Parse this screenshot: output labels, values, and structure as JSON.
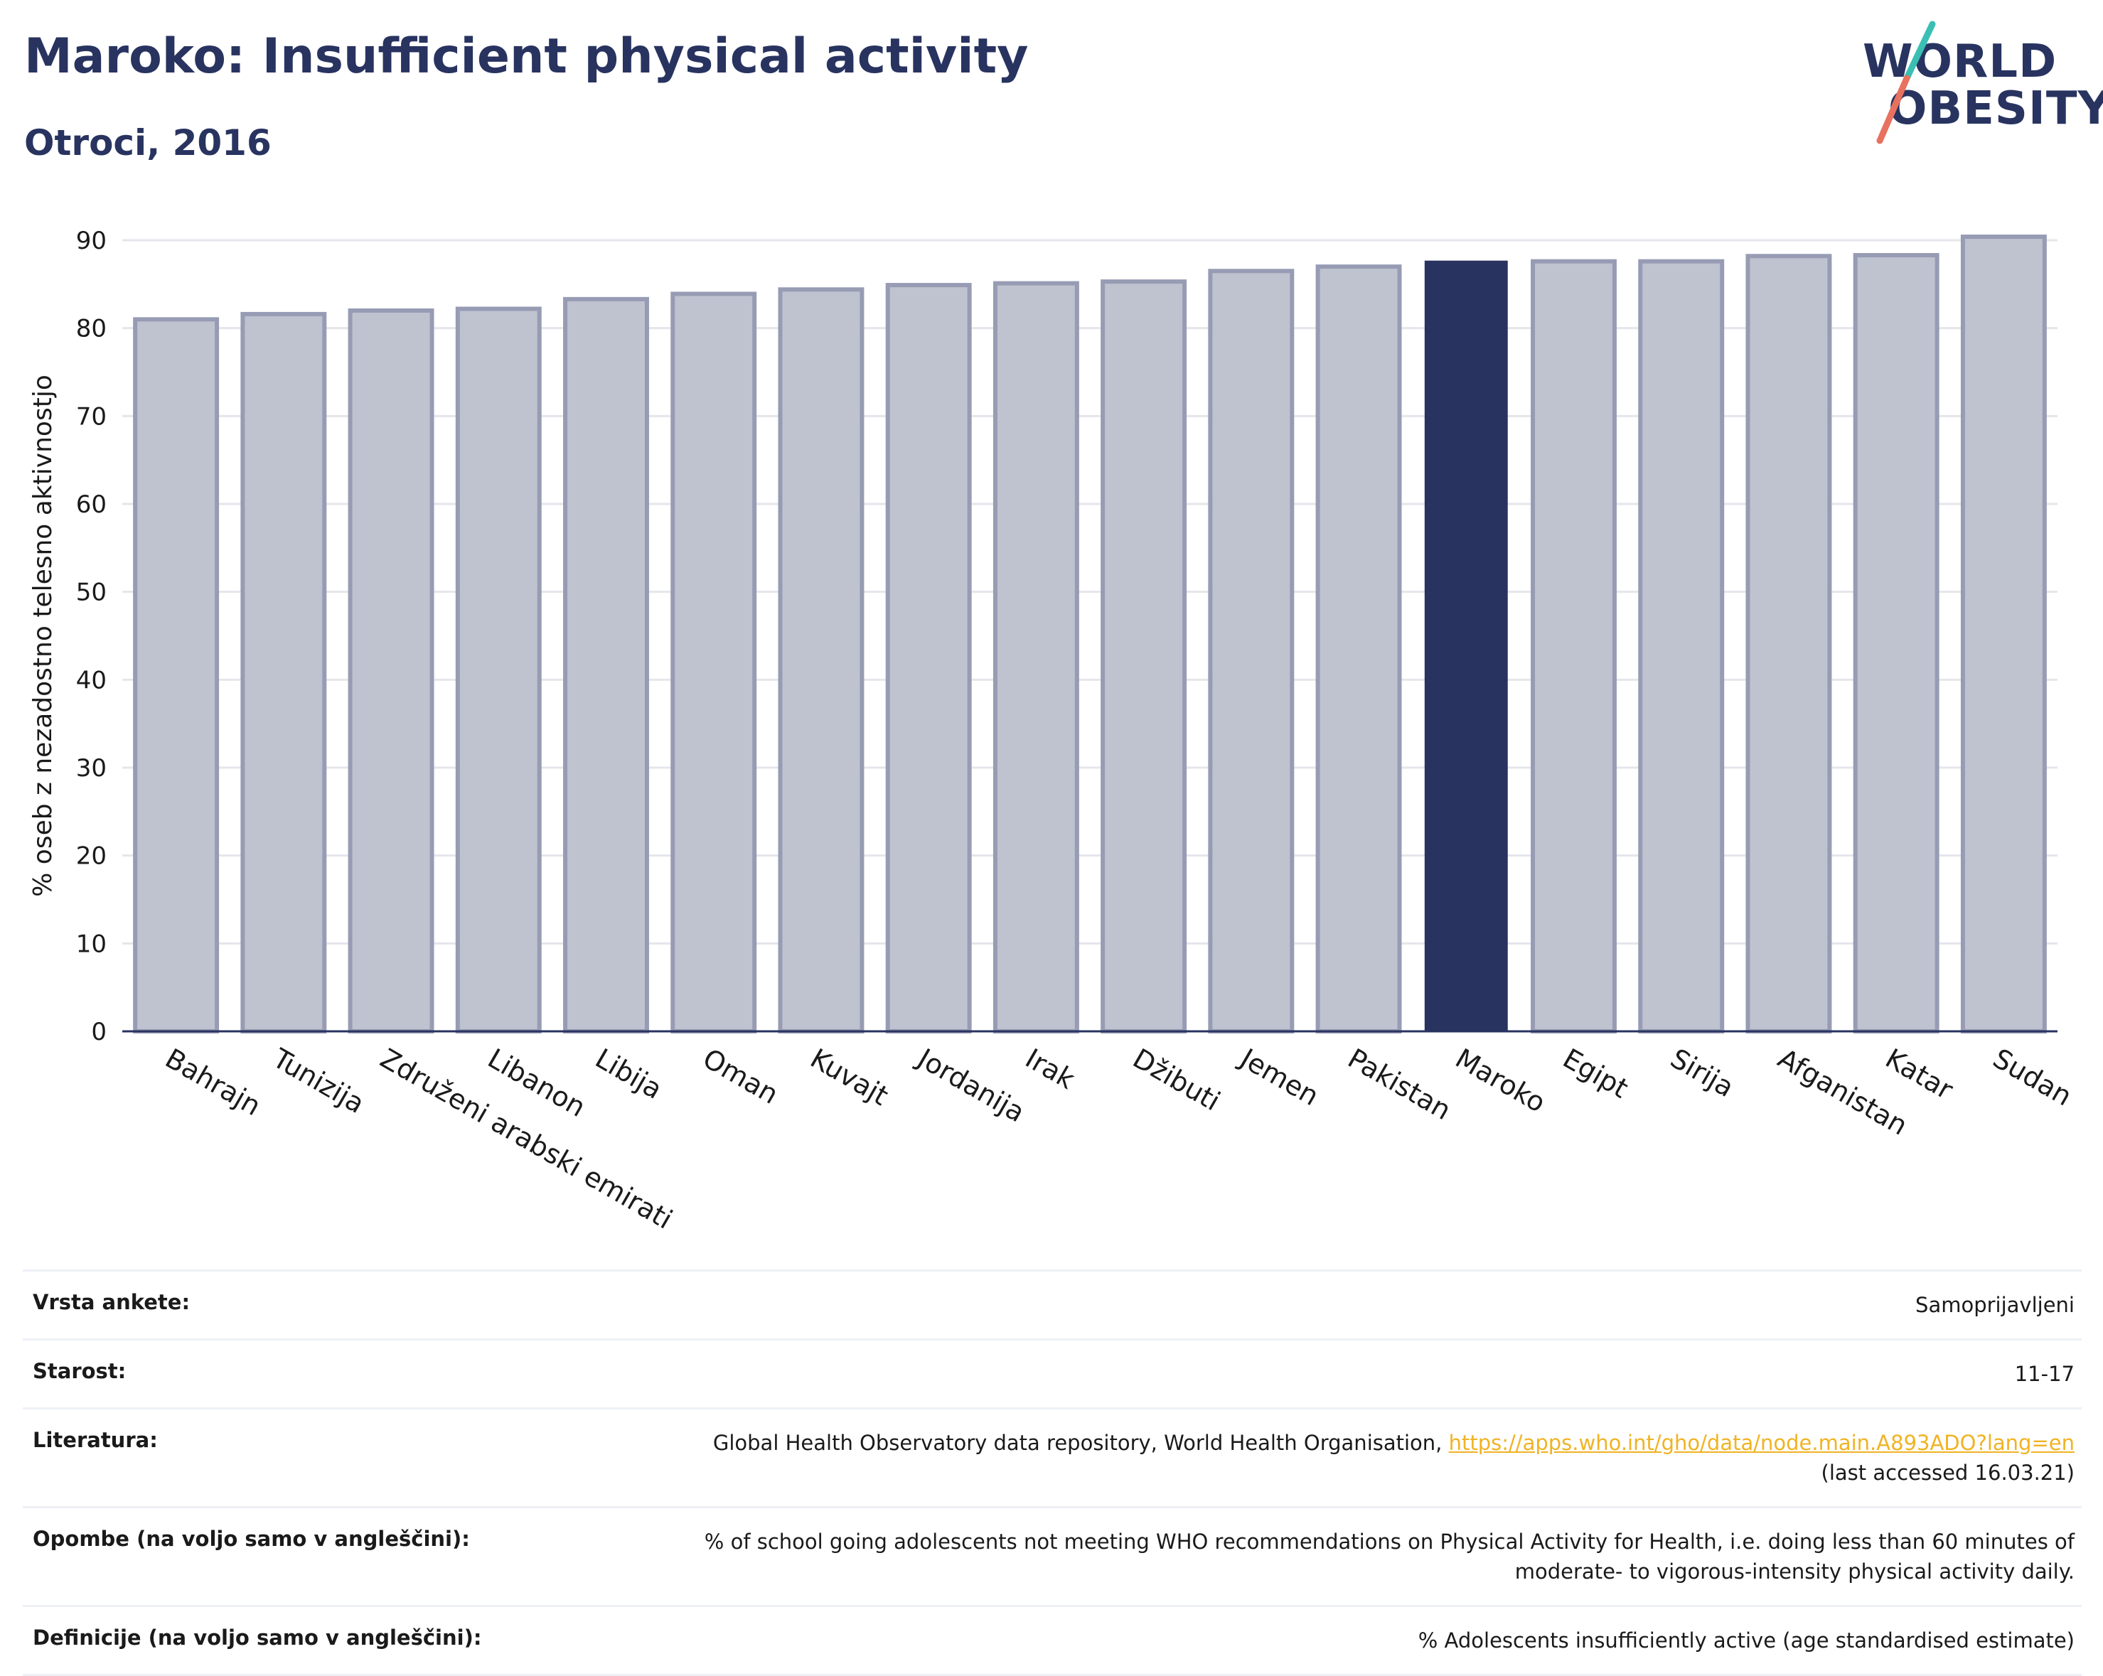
{
  "header": {
    "title": "Maroko: Insufficient physical activity",
    "subtitle": "Otroci, 2016"
  },
  "logo": {
    "line1": "WORLD",
    "line2": "OBESITY",
    "slash_colors": [
      "#3bbfb3",
      "#e8715f"
    ]
  },
  "colors": {
    "bar": "#bfc2cf",
    "bar_border": "#979cb4",
    "highlight": "#283360",
    "axis": "#283360",
    "grid": "#e5e6ec",
    "link": "#f0b323"
  },
  "chart_data": {
    "type": "bar",
    "ylabel": "% oseb z nezadostno telesno aktivnostjo",
    "ylim": [
      0,
      90
    ],
    "yticks": [
      0,
      10,
      20,
      30,
      40,
      50,
      60,
      70,
      80,
      90
    ],
    "grid": true,
    "highlight": "Maroko",
    "categories": [
      "Bahrajn",
      "Tunizija",
      "Združeni arabski emirati",
      "Libanon",
      "Libija",
      "Oman",
      "Kuvajt",
      "Jordanija",
      "Irak",
      "Džibuti",
      "Jemen",
      "Pakistan",
      "Maroko",
      "Egipt",
      "Sirija",
      "Afganistan",
      "Katar",
      "Sudan"
    ],
    "values": [
      81.0,
      81.6,
      82.0,
      82.2,
      83.3,
      83.9,
      84.4,
      84.9,
      85.1,
      85.3,
      86.5,
      87.0,
      87.6,
      87.6,
      87.6,
      88.2,
      88.3,
      90.4
    ]
  },
  "info": {
    "survey_label": "Vrsta ankete:",
    "survey_value": "Samoprijavljeni",
    "age_label": "Starost:",
    "age_value": "11-17",
    "ref_label": "Literatura:",
    "ref_text": "Global Health Observatory data repository, World Health Organisation,",
    "ref_link": "https://apps.who.int/gho/data/node.main.A893ADO?lang=en",
    "ref_accessed": "(last accessed 16.03.21)",
    "notes_label": "Opombe (na voljo samo v angleščini):",
    "notes_line1": "% of school going adolescents not meeting WHO recommendations on Physical Activity for Health, i.e. doing less than 60 minutes of",
    "notes_line2": "moderate- to vigorous-intensity physical activity daily.",
    "def_label": "Definicije (na voljo samo v angleščini):",
    "def_value": "% Adolescents insufficiently active (age standardised estimate)"
  }
}
